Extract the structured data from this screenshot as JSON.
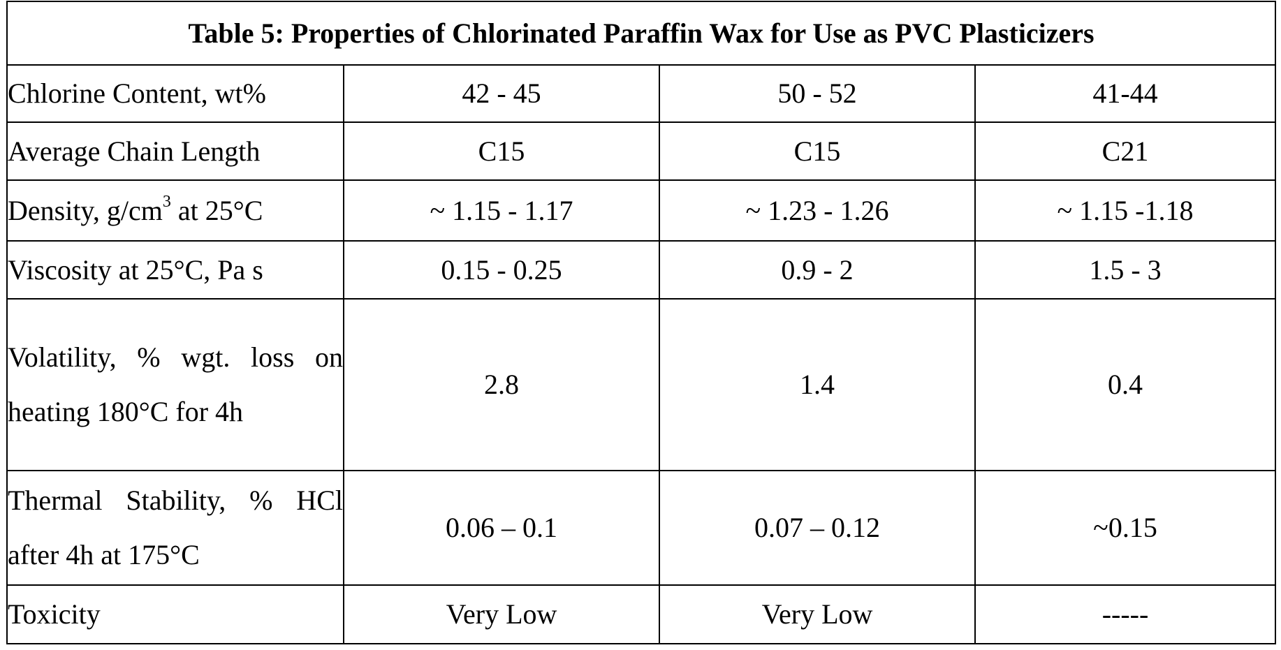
{
  "table": {
    "title": "Table 5:  Properties of Chlorinated Paraffin Wax for Use as PVC Plasticizers",
    "rows": [
      {
        "label": "Chlorine Content, wt%",
        "values": [
          "42 - 45",
          "50 - 52",
          "41-44"
        ]
      },
      {
        "label": "Average Chain Length",
        "values": [
          "C15",
          "C15",
          "C21"
        ]
      },
      {
        "label_pre": "Density, g/cm",
        "label_sup": "3",
        "label_post": " at 25°C",
        "values": [
          "~ 1.15 - 1.17",
          "~ 1.23 - 1.26",
          "~ 1.15 -1.18"
        ]
      },
      {
        "label": "Viscosity at 25°C, Pa s",
        "values": [
          "0.15 - 0.25",
          "0.9 - 2",
          "1.5 - 3"
        ]
      },
      {
        "label": "Volatility, % wgt. loss on heating 180°C for 4h",
        "values": [
          "2.8",
          "1.4",
          "0.4"
        ]
      },
      {
        "label": "Thermal Stability, % HCl after 4h at 175°C",
        "values": [
          "0.06 – 0.1",
          "0.07 – 0.12",
          "~0.15"
        ]
      },
      {
        "label": "Toxicity",
        "values": [
          "Very Low",
          "Very Low",
          "-----"
        ]
      }
    ]
  }
}
